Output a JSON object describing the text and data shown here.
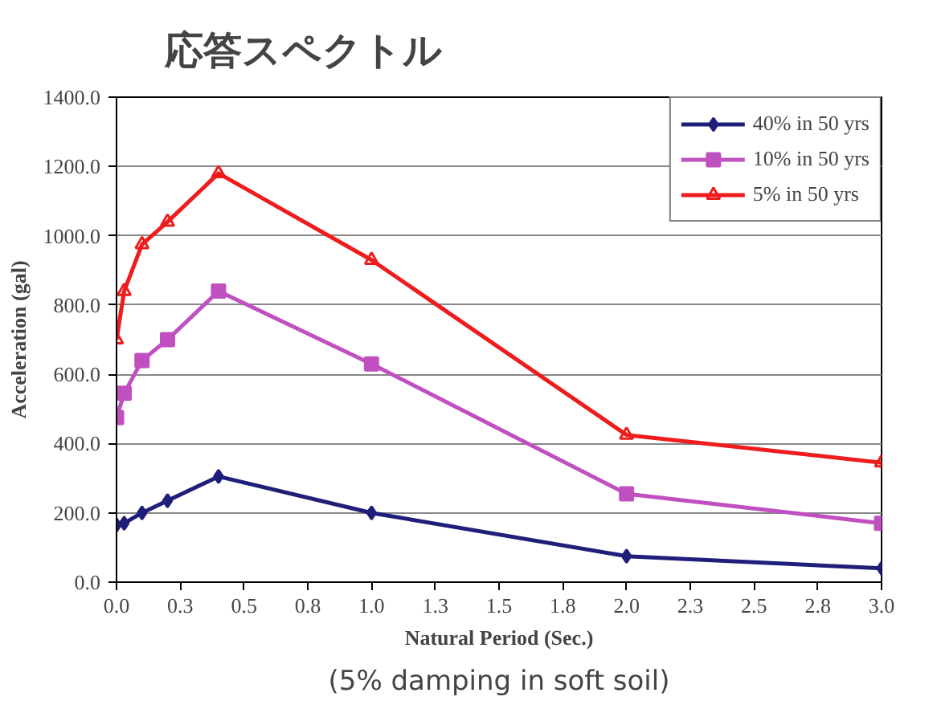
{
  "chart_data": {
    "type": "line",
    "title": "応答スペクトル",
    "xlabel": "Natural Period (Sec.)",
    "ylabel": "Acceleration (gal)",
    "annotations": [
      "(5% damping in soft soil)"
    ],
    "x": [
      0,
      0.03,
      0.1,
      0.2,
      0.4,
      1.0,
      2.0,
      3.0
    ],
    "series": [
      {
        "name": "40% in 50 yrs",
        "color": "#1f1f7a",
        "marker": "diamond",
        "values": [
          165,
          170,
          200,
          235,
          305,
          200,
          75,
          40
        ]
      },
      {
        "name": "10% in 50 yrs",
        "color": "#c050c0",
        "marker": "square",
        "values": [
          475,
          545,
          640,
          700,
          840,
          630,
          255,
          170
        ]
      },
      {
        "name": "5% in 50 yrs",
        "color": "#ee1c1c",
        "marker": "triangle",
        "values": [
          700,
          840,
          975,
          1040,
          1180,
          930,
          425,
          345
        ]
      }
    ],
    "xlim": [
      0,
      3.0
    ],
    "ylim": [
      0,
      1400
    ],
    "xticks": [
      {
        "value": 0,
        "label": "0.0"
      },
      {
        "value": 0.25,
        "label": "0.3"
      },
      {
        "value": 0.5,
        "label": "0.5"
      },
      {
        "value": 0.75,
        "label": "0.8"
      },
      {
        "value": 1.0,
        "label": "1.0"
      },
      {
        "value": 1.25,
        "label": "1.3"
      },
      {
        "value": 1.5,
        "label": "1.5"
      },
      {
        "value": 1.75,
        "label": "1.8"
      },
      {
        "value": 2.0,
        "label": "2.0"
      },
      {
        "value": 2.25,
        "label": "2.3"
      },
      {
        "value": 2.5,
        "label": "2.5"
      },
      {
        "value": 2.75,
        "label": "2.8"
      },
      {
        "value": 3.0,
        "label": "3.0"
      }
    ],
    "yticks": [
      {
        "value": 0,
        "label": "0.0"
      },
      {
        "value": 200,
        "label": "200.0"
      },
      {
        "value": 400,
        "label": "400.0"
      },
      {
        "value": 600,
        "label": "600.0"
      },
      {
        "value": 800,
        "label": "800.0"
      },
      {
        "value": 1000,
        "label": "1000.0"
      },
      {
        "value": 1200,
        "label": "1200.0"
      },
      {
        "value": 1400,
        "label": "1400.0"
      }
    ],
    "grid": "y",
    "legend": "top right",
    "line_style": "solid"
  }
}
